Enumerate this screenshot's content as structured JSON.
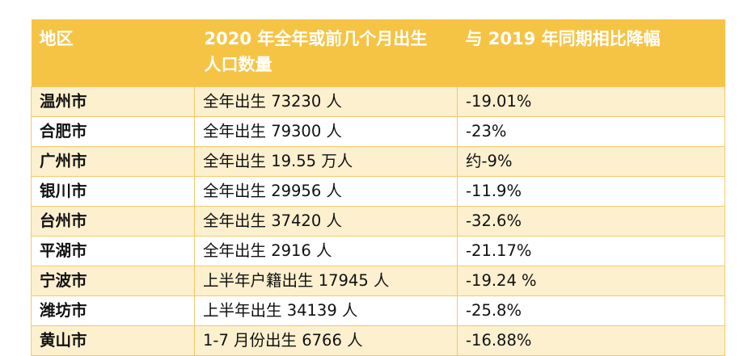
{
  "table": {
    "headers": {
      "region": "地区",
      "births_line1": "2020 年全年或前几个月出生",
      "births_line2": "人口数量",
      "change": "与 2019 年同期相比降幅"
    },
    "rows": [
      {
        "city": "温州市",
        "births": "全年出生 73230 人",
        "change": "-19.01%"
      },
      {
        "city": "合肥市",
        "births": "全年出生 79300 人",
        "change": "-23%"
      },
      {
        "city": "广州市",
        "births": "全年出生 19.55 万人",
        "change": "约-9%"
      },
      {
        "city": "银川市",
        "births": "全年出生 29956 人",
        "change": "-11.9%"
      },
      {
        "city": "台州市",
        "births": "全年出生 37420 人",
        "change": "-32.6%"
      },
      {
        "city": "平湖市",
        "births": "全年出生 2916 人",
        "change": "-21.17%"
      },
      {
        "city": "宁波市",
        "births": "上半年户籍出生 17945 人",
        "change": "-19.24 %"
      },
      {
        "city": "潍坊市",
        "births": "上半年出生 34139 人",
        "change": "-25.8%"
      },
      {
        "city": "黄山市",
        "births": "1-7 月份出生 6766 人",
        "change": "-16.88%"
      }
    ]
  }
}
